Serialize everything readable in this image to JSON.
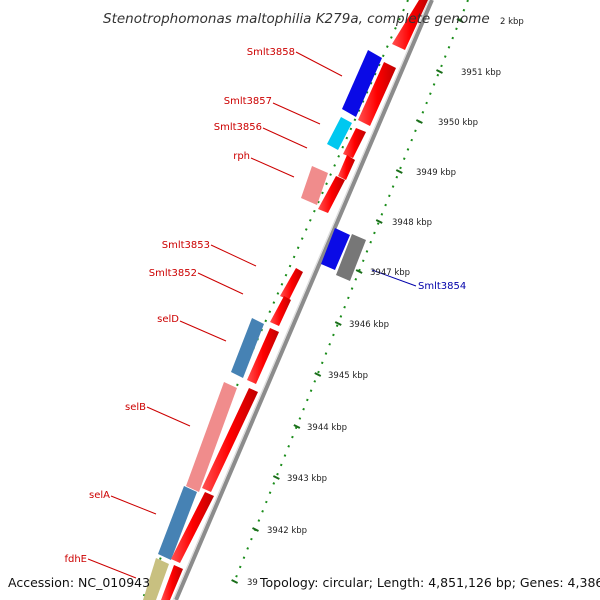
{
  "title": "Stenotrophomonas maltophilia K279a, complete genome",
  "footer": {
    "accession": "Accession: NC_010943",
    "topology": "Topology: circular; Length: 4,851,126 bp; Genes: 4,386"
  },
  "ticks": [
    "2 kbp",
    "3951 kbp",
    "3950 kbp",
    "3949 kbp",
    "3948 kbp",
    "3947 kbp",
    "3946 kbp",
    "3945 kbp",
    "3944 kbp",
    "3943 kbp",
    "3942 kbp",
    "39"
  ],
  "genes": [
    {
      "name": "Smlt3858",
      "color": "#cc0000"
    },
    {
      "name": "Smlt3857",
      "color": "#cc0000"
    },
    {
      "name": "Smlt3856",
      "color": "#cc0000"
    },
    {
      "name": "rph",
      "color": "#cc0000"
    },
    {
      "name": "Smlt3853",
      "color": "#cc0000"
    },
    {
      "name": "Smlt3852",
      "color": "#cc0000"
    },
    {
      "name": "selD",
      "color": "#cc0000"
    },
    {
      "name": "selB",
      "color": "#cc0000"
    },
    {
      "name": "selA",
      "color": "#cc0000"
    },
    {
      "name": "fdhE",
      "color": "#cc0000"
    },
    {
      "name": "Smlt3854",
      "color": "#0000aa"
    }
  ],
  "colors": {
    "cds_red": "#ff0000",
    "dark_blue": "#0a0ae6",
    "cyan": "#00c8f0",
    "pink": "#f08c8c",
    "steel_blue": "#4682b4",
    "olive": "#c8c080",
    "gray": "#777777",
    "backbone": "#8c8c8c",
    "dotted_ring": "#1a8c1a"
  }
}
